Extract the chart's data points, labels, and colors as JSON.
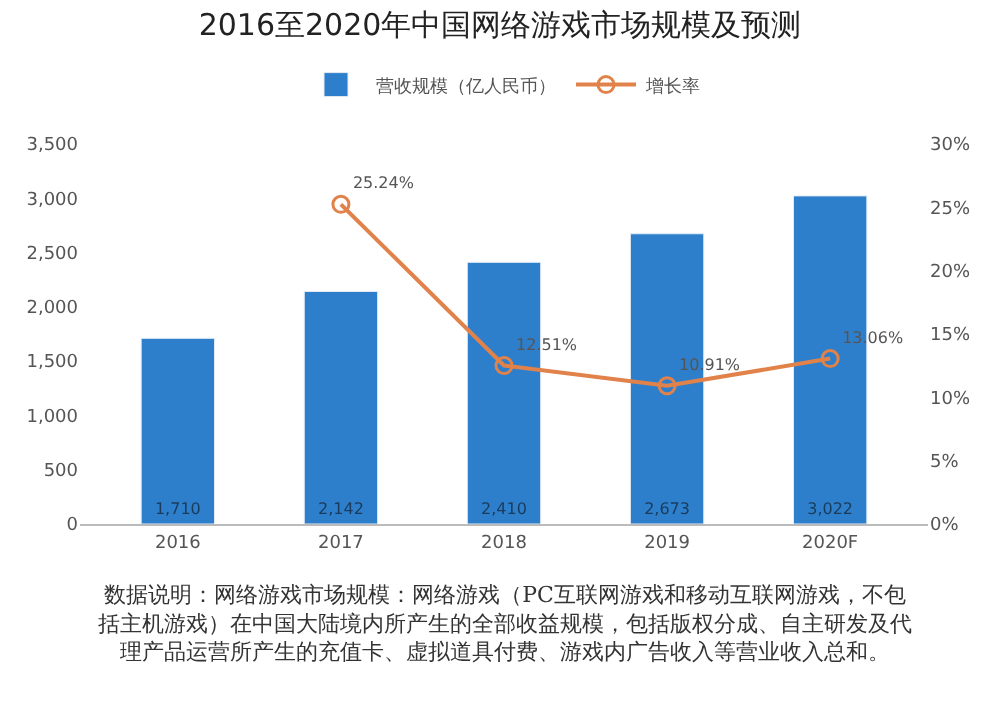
{
  "chart_data": {
    "type": "bar",
    "title": "2016至2020年中国网络游戏市场规模及预测",
    "categories": [
      "2016",
      "2017",
      "2018",
      "2019",
      "2020F"
    ],
    "series": [
      {
        "name": "营收规模（亿人民币）",
        "color": "#2e7fcb",
        "values": [
          1710,
          2142,
          2410,
          2673,
          3022
        ],
        "value_labels": [
          "1,710",
          "2,142",
          "2,410",
          "2,673",
          "3,022"
        ]
      },
      {
        "name": "增长率",
        "type": "line",
        "axis": "y2",
        "color": "#e0824a",
        "marker": "circle",
        "values": [
          null,
          25.24,
          12.51,
          10.91,
          13.06
        ],
        "value_labels": [
          null,
          "25.24%",
          "12.51%",
          "10.91%",
          "13.06%"
        ]
      }
    ],
    "ylim": [
      0,
      3500
    ],
    "yticks": [
      {
        "value": 0,
        "label": "0"
      },
      {
        "value": 500,
        "label": "500"
      },
      {
        "value": 1000,
        "label": "1,000"
      },
      {
        "value": 1500,
        "label": "1,500"
      },
      {
        "value": 2000,
        "label": "2,000"
      },
      {
        "value": 2500,
        "label": "2,500"
      },
      {
        "value": 3000,
        "label": "3,000"
      },
      {
        "value": 3500,
        "label": "3,500"
      }
    ],
    "y2lim": [
      0,
      30
    ],
    "y2ticks": [
      {
        "value": 0,
        "label": "0%"
      },
      {
        "value": 5,
        "label": "5%"
      },
      {
        "value": 10,
        "label": "10%"
      },
      {
        "value": 15,
        "label": "15%"
      },
      {
        "value": 20,
        "label": "20%"
      },
      {
        "value": 25,
        "label": "25%"
      },
      {
        "value": 30,
        "label": "30%"
      }
    ],
    "grid": false,
    "legend": "top",
    "annotations": [
      "数据说明：网络游戏市场规模：网络游戏（PC互联网游戏和移动互联网游戏，不包括主机游戏）在中国大陆境内所产生的全部收益规模，包括版权分成、自主研发及代理产品运营所产生的充值卡、虚拟道具付费、游戏内广告收入等营业收入总和。"
    ]
  }
}
